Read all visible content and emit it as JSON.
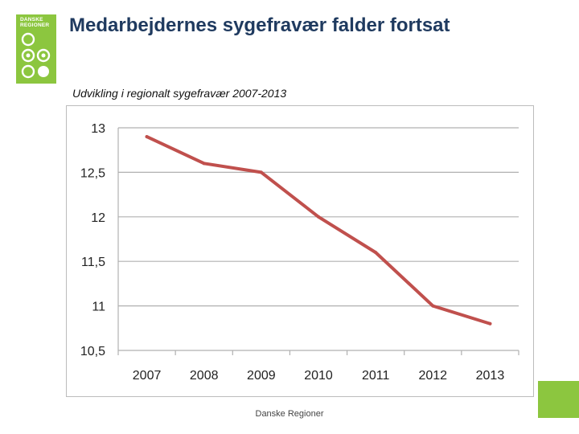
{
  "logo": {
    "text": "DANSKE\nREGIONER",
    "color": "#8cc63f"
  },
  "slide": {
    "title": "Medarbejdernes sygefravær falder fortsat",
    "subtitle": "Udvikling i regionalt sygefravær 2007-2013",
    "footer": "Danske Regioner",
    "accent_color": "#8cc63f",
    "title_color": "#1f3a5f"
  },
  "chart_data": {
    "type": "line",
    "title": "",
    "xlabel": "",
    "ylabel": "",
    "categories": [
      "2007",
      "2008",
      "2009",
      "2010",
      "2011",
      "2012",
      "2013"
    ],
    "series": [
      {
        "values": [
          12.9,
          12.6,
          12.5,
          12.0,
          11.6,
          11.0,
          10.8
        ],
        "color": "#c0504d"
      }
    ],
    "ylim": [
      10.5,
      13
    ],
    "yticks": [
      "13",
      "12,5",
      "12",
      "11,5",
      "11",
      "10,5"
    ],
    "ytick_values": [
      13,
      12.5,
      12,
      11.5,
      11,
      10.5
    ],
    "grid": true,
    "legend": "none"
  }
}
